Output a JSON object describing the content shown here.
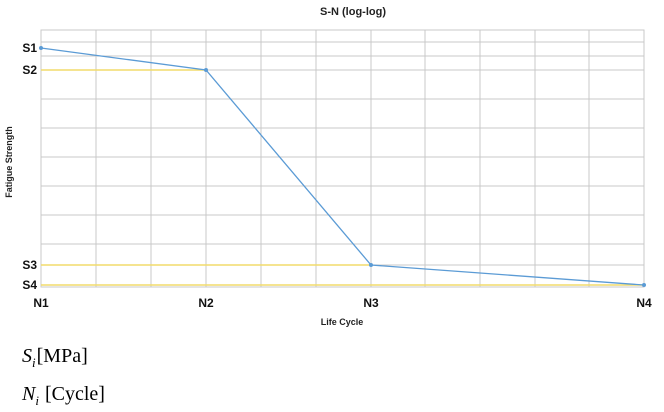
{
  "chart_data": {
    "type": "line",
    "title": "S-N (log-log)",
    "xlabel": "Life Cycle",
    "ylabel": "Fatigue Strength",
    "scale": "log-log",
    "categories": [
      "N1",
      "N2",
      "N3",
      "N4"
    ],
    "y_tick_labels": [
      "S1",
      "S2",
      "S3",
      "S4"
    ],
    "series": [
      {
        "points": [
          {
            "x": "N1",
            "y": "S1"
          },
          {
            "x": "N2",
            "y": "S2"
          },
          {
            "x": "N3",
            "y": "S3"
          },
          {
            "x": "N4",
            "y": "S4"
          }
        ]
      }
    ],
    "reference_lines": [
      {
        "y": "S2",
        "to_x": "N2"
      },
      {
        "y": "S3",
        "to_x": "N3"
      },
      {
        "y": "S4",
        "to_x": "N4"
      }
    ],
    "grid": true,
    "legend": "none",
    "colors": {
      "series": "#5b9bd5",
      "reference_lines": "#f2dc6b",
      "grid": "#c9c9c9"
    }
  },
  "notes": {
    "s_symbol": "S",
    "s_subscript": "i",
    "s_unit": "[MPa]",
    "n_symbol": "N",
    "n_subscript": "i",
    "n_unit": " [Cycle]"
  }
}
